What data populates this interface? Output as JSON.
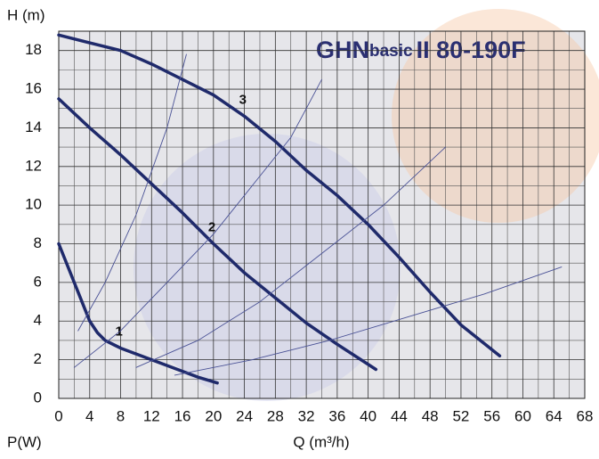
{
  "chart_data": {
    "type": "line",
    "title": {
      "main": "GHN",
      "sub": "basic",
      "rest": "II  80-190F"
    },
    "y_label": "H (m)",
    "x_label": "Q (m³/h)",
    "power_label": "P(W)",
    "xlim": [
      0,
      68
    ],
    "xticks": [
      0,
      4,
      8,
      12,
      16,
      20,
      24,
      28,
      32,
      36,
      40,
      44,
      48,
      52,
      56,
      60,
      64,
      68
    ],
    "ylim": [
      0,
      19
    ],
    "yticks": [
      0,
      2,
      4,
      6,
      8,
      10,
      12,
      14,
      16,
      18
    ],
    "grid": true,
    "title_color": "#2a2f72",
    "series": [
      {
        "name": "1",
        "color": "#1f2a6b",
        "width": 3.5,
        "x": [
          0,
          2,
          3,
          4,
          5,
          6,
          8,
          10,
          12,
          14,
          16,
          18,
          20.5
        ],
        "values": [
          8,
          6,
          5,
          4,
          3.4,
          3,
          2.6,
          2.3,
          2,
          1.7,
          1.4,
          1.1,
          0.8
        ]
      },
      {
        "name": "2",
        "color": "#1f2a6b",
        "width": 3.5,
        "x": [
          0,
          4,
          8,
          12,
          16,
          20,
          24,
          28,
          32,
          36,
          41
        ],
        "values": [
          15.5,
          14,
          12.6,
          11.1,
          9.6,
          8,
          6.5,
          5.2,
          3.9,
          2.8,
          1.5
        ]
      },
      {
        "name": "3",
        "color": "#1f2a6b",
        "width": 3.5,
        "x": [
          0,
          4,
          8,
          12,
          16,
          20,
          24,
          28,
          32,
          36,
          40,
          44,
          48,
          52,
          57
        ],
        "values": [
          18.8,
          18.4,
          18,
          17.3,
          16.5,
          15.7,
          14.6,
          13.3,
          11.8,
          10.5,
          9,
          7.3,
          5.5,
          3.8,
          2.2
        ]
      },
      {
        "color": "#4a5296",
        "width": 0.9,
        "x": [
          2.5,
          6,
          10,
          14,
          16.5
        ],
        "values": [
          3.5,
          6,
          9.5,
          14,
          17.8
        ]
      },
      {
        "color": "#4a5296",
        "width": 0.9,
        "x": [
          2,
          8,
          14,
          20,
          26,
          30,
          34
        ],
        "values": [
          1.6,
          3.5,
          6,
          8.5,
          11.5,
          13.5,
          16.5
        ]
      },
      {
        "color": "#4a5296",
        "width": 0.9,
        "x": [
          10,
          18,
          26,
          34,
          42,
          50
        ],
        "values": [
          1.6,
          3,
          5,
          7.5,
          10,
          13
        ]
      },
      {
        "color": "#4a5296",
        "width": 0.9,
        "x": [
          15,
          25,
          35,
          45,
          55,
          65
        ],
        "values": [
          1.2,
          2,
          3,
          4.2,
          5.4,
          6.8
        ]
      }
    ]
  }
}
